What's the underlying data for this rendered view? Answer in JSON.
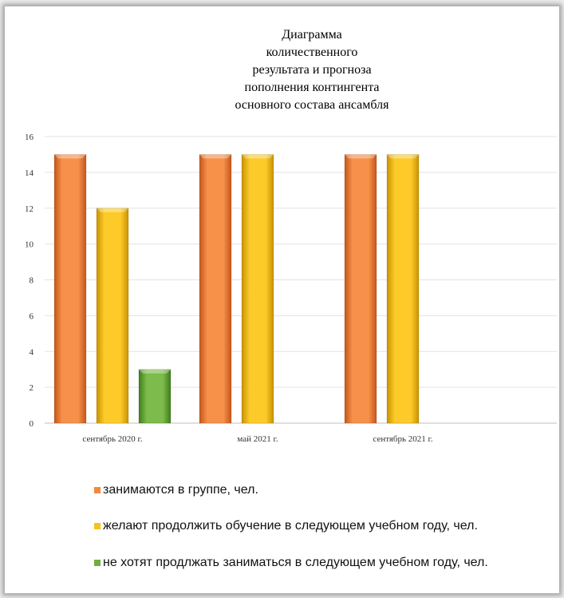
{
  "chart_data": {
    "type": "bar",
    "title_lines": [
      "Диаграмма",
      "количественного",
      "результата и прогноза",
      "пополнения контингента",
      "основного состава ансамбля"
    ],
    "categories": [
      "сентябрь 2020 г.",
      "май 2021 г.",
      "сентябрь 2021 г."
    ],
    "series": [
      {
        "name": "занимаются в группе, чел.",
        "values": [
          15,
          15,
          15
        ],
        "color": "#f5883a"
      },
      {
        "name": "желают продолжить обучение в следующем учебном году, чел.",
        "values": [
          12,
          15,
          15
        ],
        "color": "#f7c21a"
      },
      {
        "name": "не хотят продлжать заниматься в следующем учебном году, чел.",
        "values": [
          3,
          0,
          0
        ],
        "color": "#6fae3f"
      }
    ],
    "ylim": [
      0,
      16
    ],
    "yticks": [
      0,
      2,
      4,
      6,
      8,
      10,
      12,
      14,
      16
    ],
    "grid": true,
    "legend_position": "bottom"
  }
}
